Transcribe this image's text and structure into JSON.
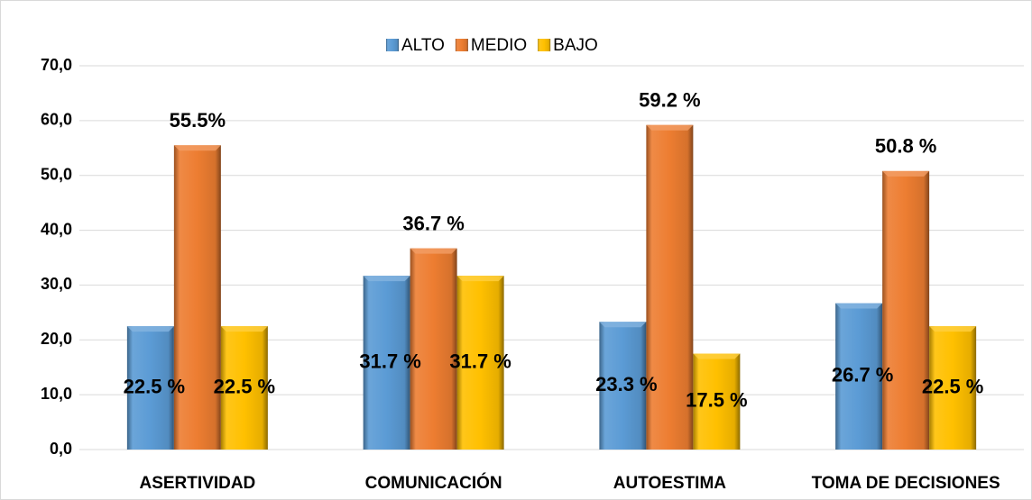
{
  "chart_data": {
    "type": "bar",
    "categories": [
      "ASERTIVIDAD",
      "COMUNICACIÓN",
      "AUTOESTIMA",
      "TOMA DE DECISIONES"
    ],
    "series": [
      {
        "name": "ALTO",
        "color": "#5b9bd5",
        "values": [
          22.5,
          31.7,
          23.3,
          26.7
        ],
        "value_labels": [
          "22.5 %",
          "31.7 %",
          "23.3 %",
          "26.7 %"
        ]
      },
      {
        "name": "MEDIO",
        "color": "#ed7d31",
        "values": [
          55.5,
          36.7,
          59.2,
          50.8
        ],
        "value_labels": [
          "55.5%",
          "36.7 %",
          "59.2 %",
          "50.8 %"
        ]
      },
      {
        "name": "BAJO",
        "color": "#ffc000",
        "values": [
          22.5,
          31.7,
          17.5,
          22.5
        ],
        "value_labels": [
          "22.5 %",
          "31.7 %",
          "17.5 %",
          "22.5 %"
        ]
      }
    ],
    "ylim": [
      0,
      70
    ],
    "yticks": [
      {
        "value": 0,
        "label": "0,0"
      },
      {
        "value": 10,
        "label": "10,0"
      },
      {
        "value": 20,
        "label": "20,0"
      },
      {
        "value": 30,
        "label": "30,0"
      },
      {
        "value": 40,
        "label": "40,0"
      },
      {
        "value": 50,
        "label": "50,0"
      },
      {
        "value": 60,
        "label": "60,0"
      },
      {
        "value": 70,
        "label": "70,0"
      }
    ],
    "grid": true,
    "legend": "top"
  }
}
